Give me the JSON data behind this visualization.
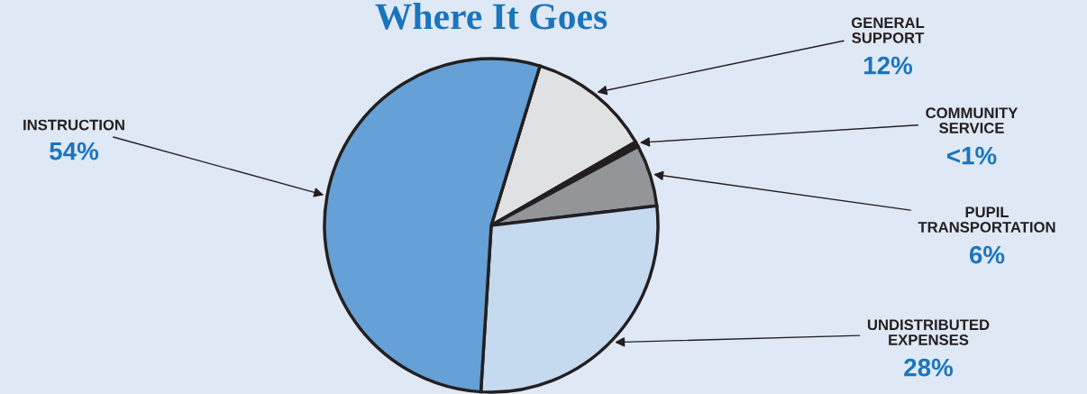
{
  "chart_data": {
    "type": "pie",
    "title": "Where It Goes",
    "categories": [
      "GENERAL\nSUPPORT",
      "COMMUNITY\nSERVICE",
      "PUPIL\nTRANSPORTATION",
      "UNDISTRIBUTED\nEXPENSES",
      "INSTRUCTION"
    ],
    "values": [
      12,
      0.5,
      6,
      28,
      54
    ],
    "value_labels": [
      "12%",
      "<1%",
      "6%",
      "28%",
      "54%"
    ],
    "colors": [
      "#e0e1e3",
      "#231f20",
      "#939598",
      "#c5d9ef",
      "#65a0d6"
    ]
  }
}
